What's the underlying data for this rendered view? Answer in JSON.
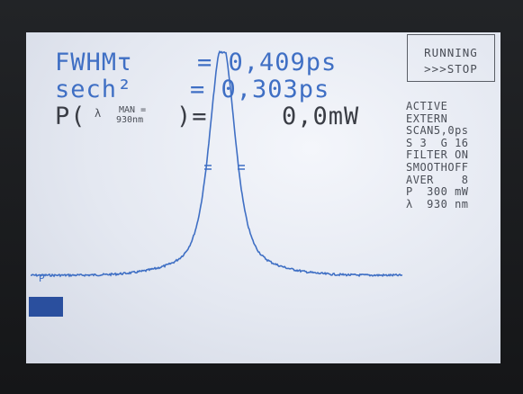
{
  "readout": {
    "fwhm_label": "FWHMτ",
    "fwhm_value": "= 0,409ps",
    "sech_label": "sech²",
    "sech_value": "= 0,303ps",
    "power_label": "P(",
    "power_lambda": "λ",
    "power_man": "MAN =",
    "power_nm": "930nm",
    "power_close": ")=",
    "power_value": "0,0mW"
  },
  "status": {
    "line1": "RUNNING",
    "line2": ">>>STOP"
  },
  "sidebar": [
    "ACTIVE",
    "EXTERN",
    "SCAN5,0ps",
    "S 3  G 16",
    "FILTER ON",
    "SMOOTHOFF",
    "AVER    8",
    "P  300 mW",
    "λ  930 nm"
  ],
  "colors": {
    "trace": "#3f6fc4",
    "text_blue": "#3f6fc4",
    "text_dark": "#3a3d45",
    "screen_bg": "#e8ecf4",
    "marker": "#2a4f9e"
  },
  "trace_marker_label": "P"
}
